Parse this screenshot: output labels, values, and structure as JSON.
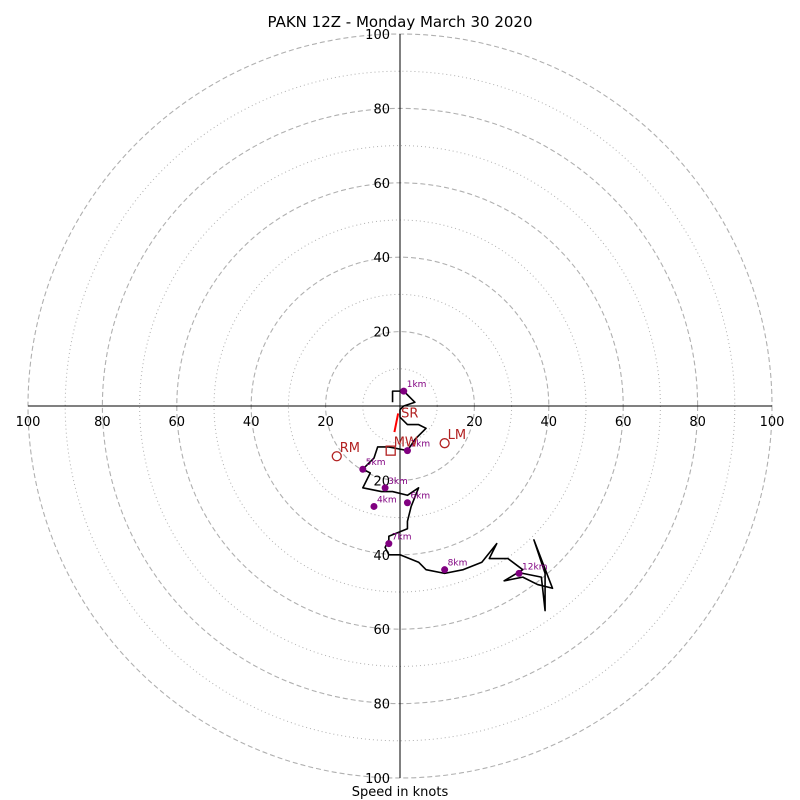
{
  "chart_data": {
    "type": "hodograph",
    "title": "PAKN 12Z - Monday March 30 2020",
    "xlabel": "Speed in knots",
    "units": "knots",
    "range": 100,
    "rings_dashed": [
      20,
      40,
      60,
      80,
      100
    ],
    "rings_dotted": [
      10,
      30,
      50,
      70,
      90
    ],
    "ticks": {
      "x_left": [
        "100",
        "80",
        "60",
        "40",
        "20"
      ],
      "x_right": [
        "20",
        "40",
        "60",
        "80",
        "100"
      ],
      "y_up": [
        "20",
        "40",
        "60",
        "80",
        "100"
      ],
      "y_down": [
        "20",
        "40",
        "60",
        "80",
        "100"
      ]
    },
    "colors": {
      "profile": "#000000",
      "height_marker": "#800080",
      "motion": "#b22222",
      "ring": "#b0b0b0"
    },
    "profile": [
      [
        -2,
        1
      ],
      [
        -2,
        4
      ],
      [
        1,
        4
      ],
      [
        4,
        1
      ],
      [
        1,
        0
      ],
      [
        0,
        -1
      ],
      [
        0,
        -3
      ],
      [
        2,
        -5
      ],
      [
        5,
        -5
      ],
      [
        7,
        -6
      ],
      [
        4,
        -9
      ],
      [
        2,
        -12
      ],
      [
        -3,
        -11
      ],
      [
        -6,
        -11
      ],
      [
        -7,
        -14
      ],
      [
        -10,
        -17
      ],
      [
        -8,
        -18
      ],
      [
        -10,
        -22
      ],
      [
        -5,
        -23
      ],
      [
        -2,
        -23
      ],
      [
        2,
        -24
      ],
      [
        5,
        -22
      ],
      [
        3,
        -27
      ],
      [
        2,
        -31
      ],
      [
        2,
        -33
      ],
      [
        -3,
        -35
      ],
      [
        -3,
        -36
      ],
      [
        -4,
        -38
      ],
      [
        -3,
        -40
      ],
      [
        0,
        -40
      ],
      [
        5,
        -42
      ],
      [
        7,
        -44
      ],
      [
        12,
        -45
      ],
      [
        17,
        -44
      ],
      [
        22,
        -42
      ],
      [
        26,
        -37
      ],
      [
        24,
        -41
      ],
      [
        29,
        -41
      ],
      [
        33,
        -44
      ],
      [
        28,
        -47
      ],
      [
        33,
        -46
      ],
      [
        37,
        -48
      ],
      [
        41,
        -49
      ],
      [
        36,
        -36
      ],
      [
        39,
        -45
      ],
      [
        39,
        -55
      ],
      [
        38,
        -46
      ],
      [
        33,
        -45
      ],
      [
        32,
        -45
      ]
    ],
    "height_markers": [
      {
        "label": "1km",
        "u": 1,
        "v": 4
      },
      {
        "label": "2km",
        "u": 2,
        "v": -12
      },
      {
        "label": "3km",
        "u": -4,
        "v": -22
      },
      {
        "label": "4km",
        "u": -7,
        "v": -27
      },
      {
        "label": "5km",
        "u": -10,
        "v": -17
      },
      {
        "label": "6km",
        "u": 2,
        "v": -26
      },
      {
        "label": "7km",
        "u": -3,
        "v": -37
      },
      {
        "label": "8km",
        "u": 12,
        "v": -44
      },
      {
        "label": "12km",
        "u": 32,
        "v": -45
      }
    ],
    "storm_motion": [
      {
        "label": "RM",
        "u": -17,
        "v": -13.5,
        "marker": "circle"
      },
      {
        "label": "LM",
        "u": 12,
        "v": -10,
        "marker": "circle"
      },
      {
        "label": "MW",
        "u": -2.5,
        "v": -12,
        "marker": "square"
      }
    ],
    "shear_vector": {
      "label": "SR",
      "from": [
        -1.5,
        -7
      ],
      "to": [
        -0.5,
        -2
      ]
    }
  }
}
